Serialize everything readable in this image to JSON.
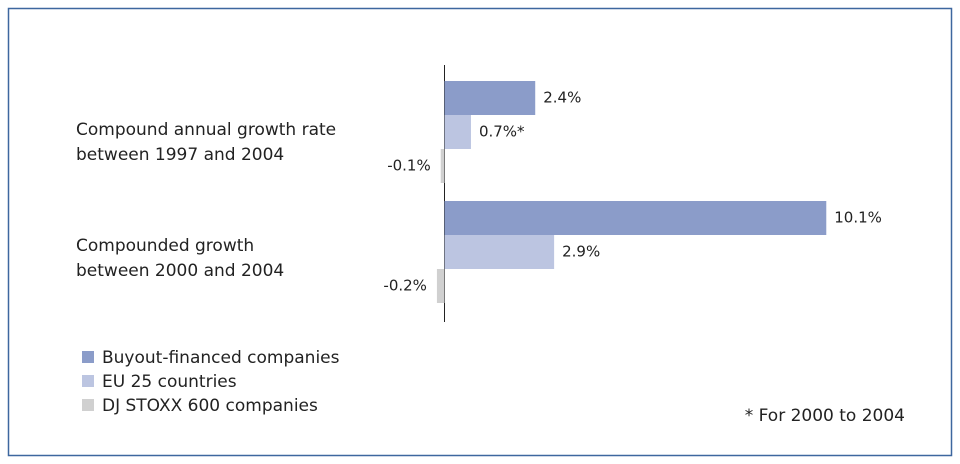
{
  "chart_data": {
    "type": "hbar",
    "categories": [
      "Compound annual growth rate\nbetween 1997 and 2004",
      "Compounded growth\nbetween 2000 and 2004"
    ],
    "series": [
      {
        "name": "Buyout-financed companies",
        "color": "#8b9cc9",
        "values": [
          2.4,
          10.1
        ],
        "value_labels": [
          "2.4%",
          "10.1%"
        ]
      },
      {
        "name": "EU 25 countries",
        "color": "#bcc5e1",
        "values": [
          0.7,
          2.9
        ],
        "value_labels": [
          "0.7%*",
          "2.9%"
        ]
      },
      {
        "name": "DJ STOXX 600 companies",
        "color": "#d0d0d0",
        "values": [
          -0.1,
          -0.2
        ],
        "value_labels": [
          "-0.1%",
          "-0.2%"
        ]
      }
    ],
    "annotation": "* For 2000 to 2004"
  }
}
